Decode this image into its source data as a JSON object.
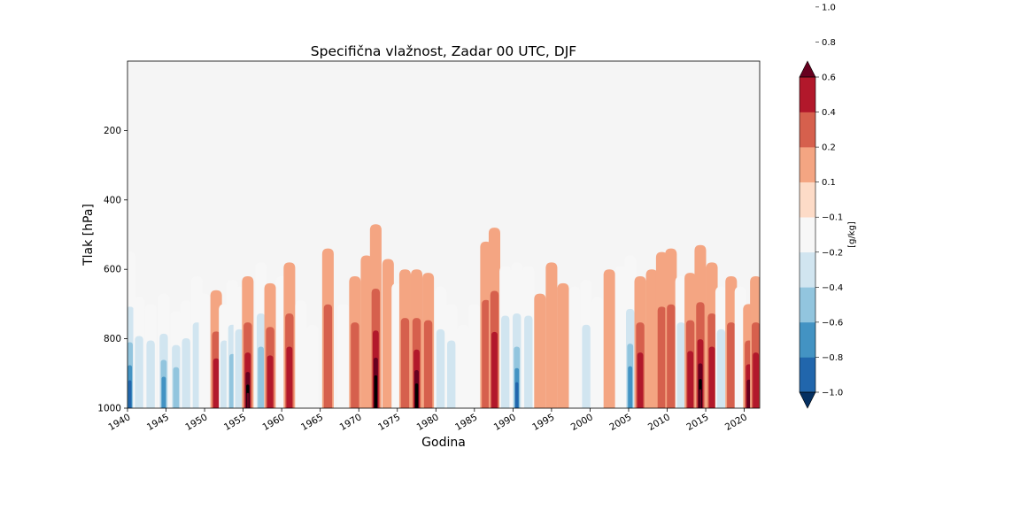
{
  "chart_data": {
    "type": "heatmap",
    "title": "Specifična vlažnost, Zadar 00 UTC, DJF",
    "xlabel": "Godina",
    "ylabel": "Tlak [hPa]",
    "xlim": [
      1940,
      2022
    ],
    "ylim": [
      1000,
      0
    ],
    "x_ticks": [
      1940,
      1945,
      1950,
      1955,
      1960,
      1965,
      1970,
      1975,
      1980,
      1985,
      1990,
      1995,
      2000,
      2005,
      2010,
      2015,
      2020
    ],
    "x_tick_labels": [
      "1940",
      "1945",
      "1950",
      "1955",
      "1960",
      "1965",
      "1970",
      "1975",
      "1980",
      "1985",
      "1990",
      "1995",
      "2000",
      "2005",
      "2010",
      "2015",
      "2020"
    ],
    "y_ticks": [
      200,
      400,
      600,
      800,
      1000
    ],
    "y_tick_labels": [
      "200",
      "400",
      "600",
      "800",
      "1000"
    ],
    "colorbar": {
      "label": "[g/kg]",
      "levels": [
        -1.0,
        -0.8,
        -0.6,
        -0.4,
        -0.2,
        -0.1,
        0.1,
        0.2,
        0.4,
        0.6,
        0.8,
        1.0
      ],
      "tick_labels": [
        "−1.0",
        "−0.8",
        "−0.6",
        "−0.4",
        "−0.2",
        "−0.1",
        "0.1",
        "0.2",
        "0.4",
        "0.6",
        "0.8",
        "1.0"
      ],
      "colors": [
        "#053061",
        "#2166ac",
        "#4393c3",
        "#92c5de",
        "#d1e5f0",
        "#f7f7f7",
        "#fddbc7",
        "#f4a582",
        "#d6604d",
        "#b2182b",
        "#67001f"
      ],
      "extend": "both"
    },
    "background_color": "#f5f5f5",
    "anomaly_columns": [
      {
        "year": 1940.3,
        "value": -0.9,
        "top": 550
      },
      {
        "year": 1941.5,
        "value": -0.4,
        "top": 680
      },
      {
        "year": 1943.0,
        "value": -0.3,
        "top": 700
      },
      {
        "year": 1944.7,
        "value": -0.7,
        "top": 670
      },
      {
        "year": 1946.3,
        "value": -0.6,
        "top": 720
      },
      {
        "year": 1947.6,
        "value": -0.3,
        "top": 690
      },
      {
        "year": 1949.0,
        "value": -0.3,
        "top": 620
      },
      {
        "year": 1950.0,
        "value": -0.2,
        "top": 670
      },
      {
        "year": 1951.5,
        "value": 0.5,
        "top": 660
      },
      {
        "year": 1952.6,
        "value": -0.3,
        "top": 700
      },
      {
        "year": 1953.6,
        "value": -0.5,
        "top": 630
      },
      {
        "year": 1954.5,
        "value": -0.4,
        "top": 650
      },
      {
        "year": 1955.6,
        "value": 1.1,
        "top": 620
      },
      {
        "year": 1957.3,
        "value": -0.5,
        "top": 580
      },
      {
        "year": 1958.5,
        "value": 0.4,
        "top": 640
      },
      {
        "year": 1960.0,
        "value": -0.2,
        "top": 620
      },
      {
        "year": 1961.0,
        "value": 0.6,
        "top": 580
      },
      {
        "year": 1962.5,
        "value": -0.2,
        "top": 690
      },
      {
        "year": 1964.0,
        "value": -0.2,
        "top": 760
      },
      {
        "year": 1966.0,
        "value": 0.3,
        "top": 540
      },
      {
        "year": 1968.0,
        "value": -0.2,
        "top": 700
      },
      {
        "year": 1969.5,
        "value": 0.3,
        "top": 620
      },
      {
        "year": 1971.0,
        "value": 0.2,
        "top": 560
      },
      {
        "year": 1972.2,
        "value": 1.0,
        "top": 470
      },
      {
        "year": 1973.8,
        "value": 0.2,
        "top": 570
      },
      {
        "year": 1975.0,
        "value": -0.2,
        "top": 640
      },
      {
        "year": 1976.0,
        "value": 0.3,
        "top": 600
      },
      {
        "year": 1977.5,
        "value": 0.9,
        "top": 600
      },
      {
        "year": 1979.0,
        "value": 0.3,
        "top": 610
      },
      {
        "year": 1980.6,
        "value": -0.3,
        "top": 650
      },
      {
        "year": 1982.0,
        "value": -0.3,
        "top": 700
      },
      {
        "year": 1983.5,
        "value": -0.2,
        "top": 760
      },
      {
        "year": 1985.0,
        "value": -0.2,
        "top": 700
      },
      {
        "year": 1986.5,
        "value": 0.3,
        "top": 520
      },
      {
        "year": 1987.6,
        "value": 0.6,
        "top": 480
      },
      {
        "year": 1989.0,
        "value": -0.3,
        "top": 590
      },
      {
        "year": 1990.5,
        "value": -0.9,
        "top": 580
      },
      {
        "year": 1992.0,
        "value": -0.3,
        "top": 590
      },
      {
        "year": 1993.5,
        "value": 0.2,
        "top": 670
      },
      {
        "year": 1995.0,
        "value": 0.2,
        "top": 580
      },
      {
        "year": 1996.5,
        "value": 0.2,
        "top": 640
      },
      {
        "year": 1998.0,
        "value": -0.2,
        "top": 650
      },
      {
        "year": 1999.5,
        "value": -0.3,
        "top": 630
      },
      {
        "year": 2001.0,
        "value": -0.2,
        "top": 680
      },
      {
        "year": 2002.5,
        "value": 0.2,
        "top": 600
      },
      {
        "year": 2004.0,
        "value": -0.2,
        "top": 590
      },
      {
        "year": 2005.2,
        "value": -0.7,
        "top": 560
      },
      {
        "year": 2006.5,
        "value": 0.5,
        "top": 620
      },
      {
        "year": 2008.0,
        "value": 0.2,
        "top": 600
      },
      {
        "year": 2009.3,
        "value": 0.3,
        "top": 550
      },
      {
        "year": 2010.5,
        "value": 0.3,
        "top": 540
      },
      {
        "year": 2011.8,
        "value": -0.3,
        "top": 620
      },
      {
        "year": 2013.0,
        "value": 0.4,
        "top": 610
      },
      {
        "year": 2014.3,
        "value": 1.1,
        "top": 530
      },
      {
        "year": 2015.8,
        "value": 0.5,
        "top": 580
      },
      {
        "year": 2017.0,
        "value": -0.3,
        "top": 650
      },
      {
        "year": 2018.3,
        "value": 0.3,
        "top": 620
      },
      {
        "year": 2019.5,
        "value": -0.2,
        "top": 650
      },
      {
        "year": 2020.6,
        "value": 0.7,
        "top": 700
      },
      {
        "year": 2021.5,
        "value": 0.4,
        "top": 620
      }
    ]
  }
}
